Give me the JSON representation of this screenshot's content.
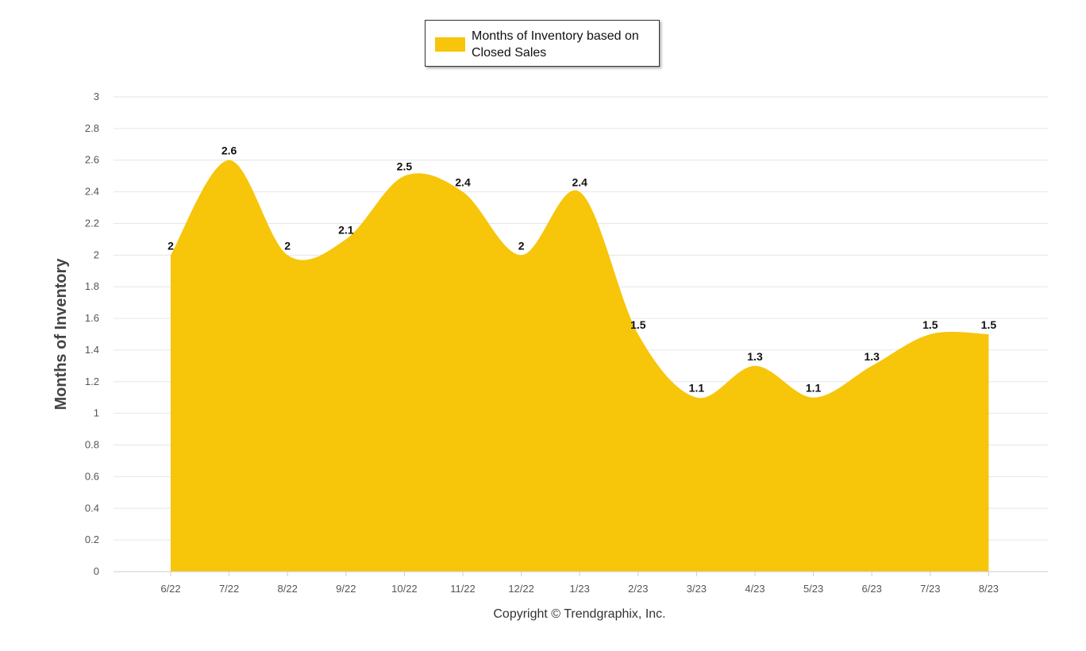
{
  "legend": {
    "label": "Months of Inventory based on Closed Sales"
  },
  "footer": {
    "copyright": "Copyright © Trendgraphix, Inc."
  },
  "colors": {
    "area": "#F7C50A",
    "grid": "#e6e6e6",
    "axis": "#cccccc"
  },
  "chart_data": {
    "type": "area",
    "smooth": true,
    "categories": [
      "6/22",
      "7/22",
      "8/22",
      "9/22",
      "10/22",
      "11/22",
      "12/22",
      "1/23",
      "2/23",
      "3/23",
      "4/23",
      "5/23",
      "6/23",
      "7/23",
      "8/23"
    ],
    "series": [
      {
        "name": "Months of Inventory based on Closed Sales",
        "values": [
          2,
          2.6,
          2,
          2.1,
          2.5,
          2.4,
          2,
          2.4,
          1.5,
          1.1,
          1.3,
          1.1,
          1.3,
          1.5,
          1.5
        ]
      }
    ],
    "data_labels": [
      "2",
      "2.6",
      "2",
      "2.1",
      "2.5",
      "2.4",
      "2",
      "2.4",
      "1.5",
      "1.1",
      "1.3",
      "1.1",
      "1.3",
      "1.5",
      "1.5"
    ],
    "ylabel": "Months of Inventory",
    "ylim": [
      0,
      3
    ],
    "yticks": [
      "0",
      "0.2",
      "0.4",
      "0.6",
      "0.8",
      "1",
      "1.2",
      "1.4",
      "1.6",
      "1.8",
      "2",
      "2.2",
      "2.4",
      "2.6",
      "2.8",
      "3"
    ],
    "grid": true,
    "legend_position": "top-center"
  }
}
